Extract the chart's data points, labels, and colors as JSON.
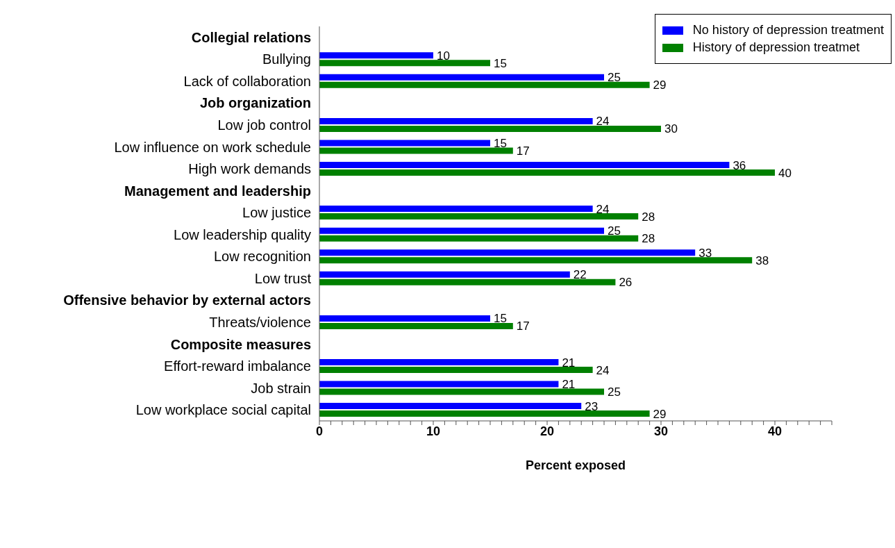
{
  "chart_data": {
    "type": "bar",
    "orientation": "horizontal",
    "xlabel": "Percent exposed",
    "categories": [
      "Collegial relations",
      "Bullying",
      "Lack of collaboration",
      "Job organization",
      "Low job control",
      "Low influence on work schedule",
      "High work demands",
      "Management and leadership",
      "Low justice",
      "Low leadership quality",
      "Low recognition",
      "Low trust",
      "Offensive behavior by external actors",
      "Threats/violence",
      "Composite measures",
      "Effort-reward imbalance",
      "Job strain",
      "Low workplace social capital"
    ],
    "series": [
      {
        "name": "No history of depression treatment",
        "color": "#0000ff",
        "values": [
          null,
          10,
          25,
          null,
          24,
          15,
          36,
          null,
          24,
          25,
          33,
          22,
          null,
          15,
          null,
          21,
          21,
          23
        ]
      },
      {
        "name": "History of depression treatmet",
        "color": "#008000",
        "values": [
          null,
          15,
          29,
          null,
          30,
          17,
          40,
          null,
          28,
          28,
          38,
          26,
          null,
          17,
          null,
          24,
          25,
          29
        ]
      }
    ],
    "xlim": [
      0,
      45
    ],
    "xticks": [
      0,
      {
        "value": 1,
        "label": null
      },
      {
        "value": 2,
        "label": null
      },
      {
        "value": 3,
        "label": null
      },
      {
        "value": 4,
        "label": null
      },
      {
        "value": 5,
        "label": null
      },
      {
        "value": 6,
        "label": null
      },
      {
        "value": 7,
        "label": null
      },
      {
        "value": 8,
        "label": null
      },
      {
        "value": 9,
        "label": null
      },
      10,
      {
        "value": 11,
        "label": null
      },
      {
        "value": 12,
        "label": null
      },
      {
        "value": 13,
        "label": null
      },
      {
        "value": 14,
        "label": null
      },
      {
        "value": 15,
        "label": null
      },
      {
        "value": 16,
        "label": null
      },
      {
        "value": 17,
        "label": null
      },
      {
        "value": 18,
        "label": null
      },
      {
        "value": 19,
        "label": null
      },
      20,
      {
        "value": 21,
        "label": null
      },
      {
        "value": 22,
        "label": null
      },
      {
        "value": 23,
        "label": null
      },
      {
        "value": 24,
        "label": null
      },
      {
        "value": 25,
        "label": null
      },
      {
        "value": 26,
        "label": null
      },
      {
        "value": 27,
        "label": null
      },
      {
        "value": 28,
        "label": null
      },
      {
        "value": 29,
        "label": null
      },
      30,
      {
        "value": 31,
        "label": null
      },
      {
        "value": 32,
        "label": null
      },
      {
        "value": 33,
        "label": null
      },
      {
        "value": 34,
        "label": null
      },
      {
        "value": 35,
        "label": null
      },
      {
        "value": 36,
        "label": null
      },
      {
        "value": 37,
        "label": null
      },
      {
        "value": 38,
        "label": null
      },
      {
        "value": 39,
        "label": null
      },
      40,
      {
        "value": 41,
        "label": null
      },
      {
        "value": 42,
        "label": null
      },
      {
        "value": 43,
        "label": null
      },
      {
        "value": 44,
        "label": null
      },
      {
        "value": 45,
        "label": null
      }
    ],
    "data_labels": true,
    "legend": "top right",
    "grid": false
  }
}
